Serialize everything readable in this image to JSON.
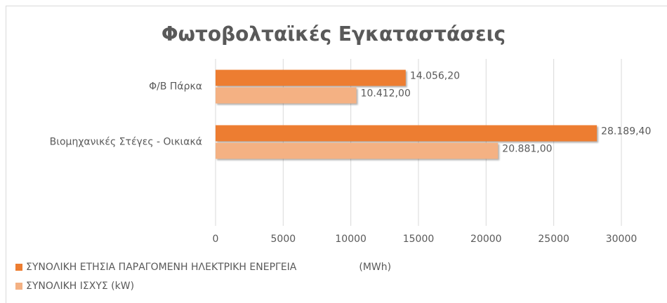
{
  "chart_data": {
    "type": "bar",
    "orientation": "horizontal",
    "title": "Φωτοβολταϊκές Εγκαταστάσεις",
    "categories": [
      "Φ/Β Πάρκα",
      "Βιομηχανικές Στέγες - Οικιακά"
    ],
    "series": [
      {
        "name": "ΣΥΝΟΛΙΚΗ ΕΤΗΣΙΑ ΠΑΡΑΓΟΜΕΝΗ ΗΛΕΚΤΡΙΚΗ ΕΝΕΡΓΕΙΑ                    (MWh)",
        "color": "#ed7d31",
        "values": [
          14056.2,
          28189.4
        ],
        "value_labels": [
          "14.056,20",
          "28.189,40"
        ]
      },
      {
        "name": "ΣΥΝΟΛΙΚΗ ΙΣΧΥΣ (kW)",
        "color": "#f4b183",
        "values": [
          10412,
          20881
        ],
        "value_labels": [
          "10.412,00",
          "20.881,00"
        ]
      }
    ],
    "xlim": [
      0,
      30000
    ],
    "xticks": [
      0,
      5000,
      10000,
      15000,
      20000,
      25000,
      30000
    ],
    "grid": true,
    "legend": "bottom-left"
  }
}
